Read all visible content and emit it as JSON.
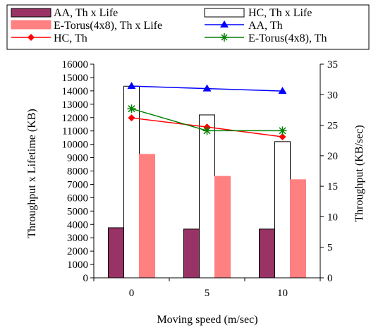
{
  "chart_data": {
    "type": "bar",
    "categories": [
      "0",
      "5",
      "10"
    ],
    "xlabel": "Moving speed (m/sec)",
    "ylabel_left": "Throughput x Lifetime (KB)",
    "ylabel_right": "Throughput (KB/sec)",
    "ylim_left": [
      0,
      16000
    ],
    "yticks_left": [
      "0",
      "1000",
      "2000",
      "3000",
      "4000",
      "5000",
      "6000",
      "7000",
      "8000",
      "9000",
      "10000",
      "11000",
      "12000",
      "13000",
      "14000",
      "15000",
      "16000"
    ],
    "ylim_right": [
      0,
      35
    ],
    "yticks_right": [
      "0",
      "5",
      "10",
      "15",
      "20",
      "25",
      "30",
      "35"
    ],
    "legend_position": "top",
    "bar_series": [
      {
        "name": "AA, Th x Life",
        "values": [
          3750,
          3650,
          3650
        ],
        "color": "#993366",
        "border": "#000000"
      },
      {
        "name": "HC, Th x Life",
        "values": [
          14350,
          12200,
          10200
        ],
        "color": "#ffffff",
        "border": "#000000"
      },
      {
        "name": "E-Torus(4x8), Th x Life",
        "values": [
          9250,
          7600,
          7350
        ],
        "color": "#ff8080",
        "border": "#ff8080"
      }
    ],
    "line_series": [
      {
        "name": "AA, Th",
        "values": [
          31.4,
          31.0,
          30.6
        ],
        "color": "#0000ff",
        "marker": "triangle"
      },
      {
        "name": "HC, Th",
        "values": [
          26.2,
          24.7,
          23.1
        ],
        "color": "#ff0000",
        "marker": "diamond"
      },
      {
        "name": "E-Torus(4x8), Th",
        "values": [
          27.7,
          24.1,
          24.1
        ],
        "color": "#008000",
        "marker": "star"
      }
    ]
  }
}
